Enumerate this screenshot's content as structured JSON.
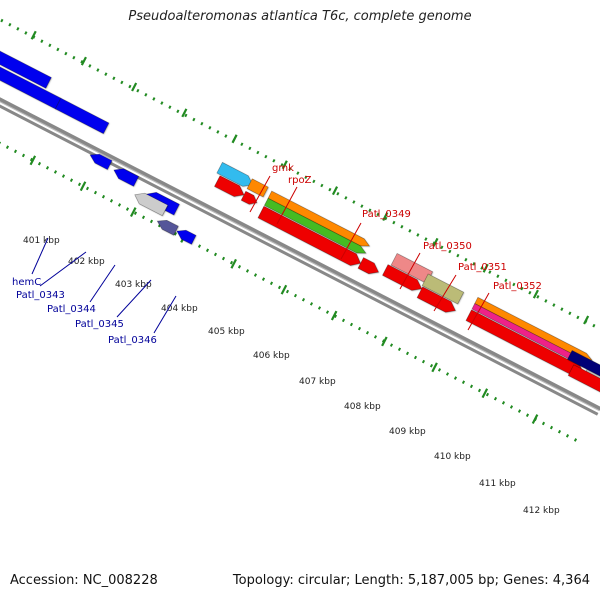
{
  "title": "Pseudoalteromonas atlantica T6c, complete genome",
  "footer": {
    "accession": "Accession: NC_008228",
    "summary": "Topology: circular; Length: 5,187,005 bp; Genes: 4,364"
  },
  "colors": {
    "background": "#ffffff",
    "backbone": "#888888",
    "tick_marks": "#228b22",
    "forward_label": "#cc0000",
    "reverse_label": "#000099",
    "kbp_label": "#222222",
    "gene_blue": "#0000ee",
    "gene_red": "#ee0000",
    "gene_cyan": "#33bbee",
    "gene_orange": "#ff8800",
    "gene_green": "#44bb22",
    "gene_pink": "#ee8888",
    "gene_khaki": "#bbbb77",
    "gene_magenta": "#ee2288",
    "gene_gray": "#cccccc",
    "gene_slate": "#555599",
    "gene_navy": "#000077"
  },
  "kbp_labels": [
    "401 kbp",
    "402 kbp",
    "403 kbp",
    "404 kbp",
    "405 kbp",
    "406 kbp",
    "407 kbp",
    "408 kbp",
    "409 kbp",
    "410 kbp",
    "411 kbp",
    "412 kbp"
  ],
  "forward_gene_labels": [
    "gmk",
    "rpoZ",
    "Patl_0349",
    "Patl_0350",
    "Patl_0351",
    "Patl_0352"
  ],
  "reverse_gene_labels": [
    "hemC",
    "Patl_0343",
    "Patl_0344",
    "Patl_0345",
    "Patl_0346"
  ]
}
